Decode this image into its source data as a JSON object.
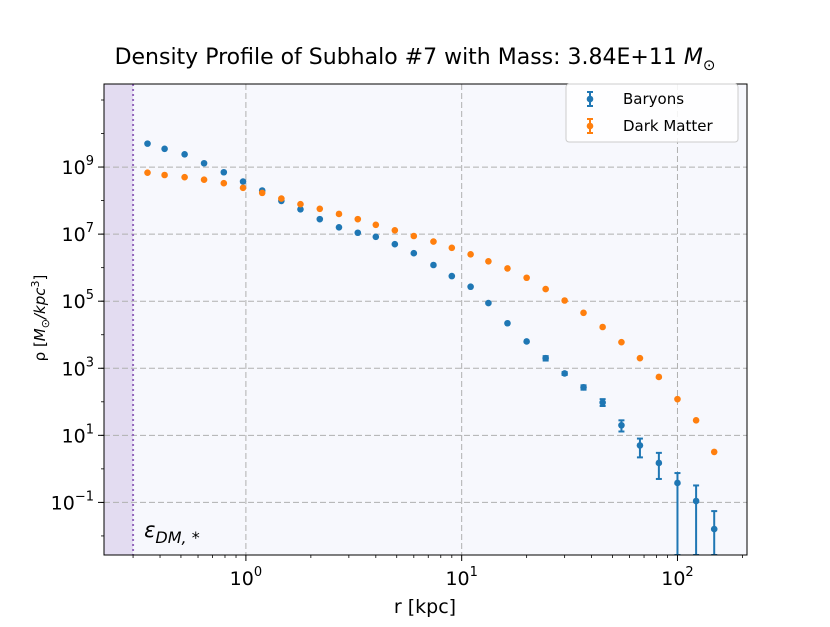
{
  "chart_data": {
    "type": "scatter",
    "title": "Density Profile of Subhalo #7 with Mass: 3.84E+11 M⊙",
    "title_parts": {
      "prefix": "Density Profile of Subhalo #7 with Mass: 3.84E+11 ",
      "mass_unit": "M",
      "mass_sub": "⊙"
    },
    "xlabel": "r [kpc]",
    "ylabel": "ρ [M⊙/kpc³]",
    "ylabel_parts": {
      "pre": "ρ [",
      "m": "M",
      "sub": "⊙",
      "mid": "/kpc",
      "sup": "3",
      "post": "]"
    },
    "x_scale": "log",
    "y_scale": "log",
    "xlim": [
      0.22,
      210
    ],
    "ylim": [
      0.0027,
      300000000000
    ],
    "grid": true,
    "legend_position": "top-right",
    "x_ticks": [
      {
        "value": 1,
        "base": "10",
        "exp": "0"
      },
      {
        "value": 10,
        "base": "10",
        "exp": "1"
      },
      {
        "value": 100,
        "base": "10",
        "exp": "2"
      }
    ],
    "y_ticks": [
      {
        "value": 0.1,
        "base": "10",
        "exp": "−1"
      },
      {
        "value": 10,
        "base": "10",
        "exp": "1"
      },
      {
        "value": 1000,
        "base": "10",
        "exp": "3"
      },
      {
        "value": 100000,
        "base": "10",
        "exp": "5"
      },
      {
        "value": 10000000,
        "base": "10",
        "exp": "7"
      },
      {
        "value": 1000000000,
        "base": "10",
        "exp": "9"
      }
    ],
    "softening": {
      "value": 0.3,
      "label": "ε",
      "label_sub": "DM, *",
      "color": "#9467bd"
    },
    "series": [
      {
        "name": "Baryons",
        "color": "#1f77b4",
        "points": [
          {
            "x": 0.35,
            "y": 5000000000
          },
          {
            "x": 0.42,
            "y": 3500000000
          },
          {
            "x": 0.52,
            "y": 2400000000
          },
          {
            "x": 0.64,
            "y": 1300000000
          },
          {
            "x": 0.79,
            "y": 700000000
          },
          {
            "x": 0.97,
            "y": 370000000
          },
          {
            "x": 1.19,
            "y": 200000000
          },
          {
            "x": 1.46,
            "y": 98000000
          },
          {
            "x": 1.79,
            "y": 55000000
          },
          {
            "x": 2.2,
            "y": 28000000
          },
          {
            "x": 2.7,
            "y": 16000000
          },
          {
            "x": 3.3,
            "y": 11000000
          },
          {
            "x": 4.0,
            "y": 8300000
          },
          {
            "x": 4.9,
            "y": 5000000
          },
          {
            "x": 6.0,
            "y": 2700000
          },
          {
            "x": 7.4,
            "y": 1200000
          },
          {
            "x": 9.0,
            "y": 560000
          },
          {
            "x": 11.0,
            "y": 270000
          },
          {
            "x": 13.3,
            "y": 88000
          },
          {
            "x": 16.3,
            "y": 22000
          },
          {
            "x": 20.0,
            "y": 6300
          },
          {
            "x": 24.5,
            "y": 2000,
            "yerr": [
              1700,
              2300
            ]
          },
          {
            "x": 30.0,
            "y": 700,
            "yerr": [
              630,
              770
            ]
          },
          {
            "x": 36.7,
            "y": 270,
            "yerr": [
              230,
              310
            ]
          },
          {
            "x": 45.0,
            "y": 95,
            "yerr": [
              75,
              120
            ]
          },
          {
            "x": 55.0,
            "y": 20,
            "yerr": [
              13,
              28
            ]
          },
          {
            "x": 67.0,
            "y": 5,
            "yerr": [
              2.2,
              8
            ]
          },
          {
            "x": 82.0,
            "y": 1.5,
            "yerr": [
              0.5,
              3
            ]
          },
          {
            "x": 100.0,
            "y": 0.38,
            "yerr": [
              0.0027,
              0.75
            ]
          },
          {
            "x": 122.0,
            "y": 0.11,
            "yerr": [
              0.0027,
              0.32
            ]
          },
          {
            "x": 148.0,
            "y": 0.016,
            "yerr": [
              0.0027,
              0.055
            ]
          }
        ]
      },
      {
        "name": "Dark Matter",
        "color": "#ff7f0e",
        "points": [
          {
            "x": 0.35,
            "y": 680000000
          },
          {
            "x": 0.42,
            "y": 580000000
          },
          {
            "x": 0.52,
            "y": 500000000
          },
          {
            "x": 0.64,
            "y": 420000000
          },
          {
            "x": 0.79,
            "y": 330000000
          },
          {
            "x": 0.97,
            "y": 240000000
          },
          {
            "x": 1.19,
            "y": 170000000
          },
          {
            "x": 1.46,
            "y": 115000000
          },
          {
            "x": 1.79,
            "y": 78000000
          },
          {
            "x": 2.2,
            "y": 57000000
          },
          {
            "x": 2.7,
            "y": 40000000
          },
          {
            "x": 3.3,
            "y": 28000000
          },
          {
            "x": 4.0,
            "y": 19000000
          },
          {
            "x": 4.9,
            "y": 13000000
          },
          {
            "x": 6.0,
            "y": 8800000
          },
          {
            "x": 7.4,
            "y": 6000000
          },
          {
            "x": 9.0,
            "y": 3900000
          },
          {
            "x": 11.0,
            "y": 2500000
          },
          {
            "x": 13.3,
            "y": 1550000
          },
          {
            "x": 16.3,
            "y": 950000
          },
          {
            "x": 20.0,
            "y": 500000
          },
          {
            "x": 24.5,
            "y": 230000
          },
          {
            "x": 30.0,
            "y": 105000
          },
          {
            "x": 36.7,
            "y": 45000
          },
          {
            "x": 45.0,
            "y": 17000
          },
          {
            "x": 55.0,
            "y": 6000
          },
          {
            "x": 67.0,
            "y": 2000
          },
          {
            "x": 82.0,
            "y": 550
          },
          {
            "x": 100.0,
            "y": 120
          },
          {
            "x": 122.0,
            "y": 28
          },
          {
            "x": 148.0,
            "y": 3.2
          }
        ]
      }
    ]
  }
}
